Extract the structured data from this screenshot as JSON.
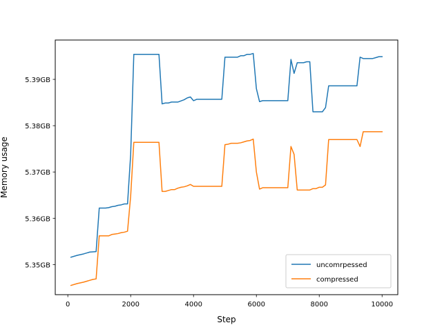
{
  "chart_data": {
    "type": "line",
    "title": "",
    "xlabel": "Step",
    "ylabel": "Memory usage",
    "xlim": [
      -400,
      10500
    ],
    "ylim": [
      5.3435,
      5.3985
    ],
    "xticks": [
      0,
      2000,
      4000,
      6000,
      8000,
      10000
    ],
    "xtick_labels": [
      "0",
      "2000",
      "4000",
      "6000",
      "8000",
      "10000"
    ],
    "yticks": [
      5.35,
      5.36,
      5.37,
      5.38,
      5.39
    ],
    "ytick_labels": [
      "5.35GB",
      "5.36GB",
      "5.37GB",
      "5.38GB",
      "5.39GB"
    ],
    "grid": false,
    "legend_position": "lower right",
    "series": [
      {
        "name": "uncomrpessed",
        "color": "#1f77b4",
        "points": [
          [
            100,
            5.3516
          ],
          [
            300,
            5.352
          ],
          [
            500,
            5.3523
          ],
          [
            700,
            5.3527
          ],
          [
            900,
            5.3528
          ],
          [
            1000,
            5.3622
          ],
          [
            1200,
            5.3622
          ],
          [
            1300,
            5.3623
          ],
          [
            1400,
            5.3625
          ],
          [
            1500,
            5.3626
          ],
          [
            1600,
            5.3628
          ],
          [
            1700,
            5.3629
          ],
          [
            1800,
            5.3631
          ],
          [
            1900,
            5.3631
          ],
          [
            2000,
            5.3738
          ],
          [
            2100,
            5.3954
          ],
          [
            2300,
            5.3954
          ],
          [
            2500,
            5.3954
          ],
          [
            2700,
            5.3954
          ],
          [
            2900,
            5.3954
          ],
          [
            3000,
            5.3847
          ],
          [
            3100,
            5.3849
          ],
          [
            3200,
            5.3849
          ],
          [
            3300,
            5.3851
          ],
          [
            3500,
            5.3851
          ],
          [
            3700,
            5.3856
          ],
          [
            3800,
            5.386
          ],
          [
            3900,
            5.3862
          ],
          [
            4000,
            5.3854
          ],
          [
            4100,
            5.3857
          ],
          [
            4300,
            5.3857
          ],
          [
            4600,
            5.3857
          ],
          [
            4900,
            5.3857
          ],
          [
            5000,
            5.3948
          ],
          [
            5200,
            5.3948
          ],
          [
            5400,
            5.3948
          ],
          [
            5500,
            5.3951
          ],
          [
            5600,
            5.3951
          ],
          [
            5700,
            5.3954
          ],
          [
            5800,
            5.3954
          ],
          [
            5900,
            5.3956
          ],
          [
            6000,
            5.388
          ],
          [
            6100,
            5.3852
          ],
          [
            6200,
            5.3854
          ],
          [
            6400,
            5.3854
          ],
          [
            6600,
            5.3854
          ],
          [
            6800,
            5.3854
          ],
          [
            7000,
            5.3854
          ],
          [
            7100,
            5.3943
          ],
          [
            7200,
            5.3913
          ],
          [
            7300,
            5.3936
          ],
          [
            7500,
            5.3936
          ],
          [
            7600,
            5.3938
          ],
          [
            7700,
            5.3938
          ],
          [
            7800,
            5.383
          ],
          [
            8000,
            5.383
          ],
          [
            8100,
            5.383
          ],
          [
            8200,
            5.3839
          ],
          [
            8300,
            5.3886
          ],
          [
            8500,
            5.3886
          ],
          [
            8800,
            5.3886
          ],
          [
            9000,
            5.3886
          ],
          [
            9200,
            5.3886
          ],
          [
            9300,
            5.3948
          ],
          [
            9400,
            5.3945
          ],
          [
            9600,
            5.3945
          ],
          [
            9700,
            5.3945
          ],
          [
            9800,
            5.3947
          ],
          [
            9900,
            5.3949
          ],
          [
            10000,
            5.3949
          ]
        ]
      },
      {
        "name": "compressed",
        "color": "#ff7f0e",
        "points": [
          [
            100,
            5.3455
          ],
          [
            300,
            5.3459
          ],
          [
            500,
            5.3462
          ],
          [
            700,
            5.3466
          ],
          [
            800,
            5.3468
          ],
          [
            900,
            5.3469
          ],
          [
            1000,
            5.3562
          ],
          [
            1200,
            5.3562
          ],
          [
            1300,
            5.3562
          ],
          [
            1400,
            5.3565
          ],
          [
            1500,
            5.3566
          ],
          [
            1600,
            5.3567
          ],
          [
            1700,
            5.3569
          ],
          [
            1800,
            5.357
          ],
          [
            1900,
            5.3572
          ],
          [
            2000,
            5.3648
          ],
          [
            2100,
            5.3764
          ],
          [
            2300,
            5.3764
          ],
          [
            2500,
            5.3764
          ],
          [
            2700,
            5.3764
          ],
          [
            2900,
            5.3764
          ],
          [
            3000,
            5.3658
          ],
          [
            3100,
            5.3658
          ],
          [
            3200,
            5.366
          ],
          [
            3300,
            5.3662
          ],
          [
            3400,
            5.3662
          ],
          [
            3500,
            5.3665
          ],
          [
            3600,
            5.3667
          ],
          [
            3700,
            5.3668
          ],
          [
            3800,
            5.367
          ],
          [
            3900,
            5.3673
          ],
          [
            4000,
            5.3669
          ],
          [
            4200,
            5.3669
          ],
          [
            4500,
            5.3669
          ],
          [
            4900,
            5.3669
          ],
          [
            5000,
            5.3759
          ],
          [
            5100,
            5.376
          ],
          [
            5200,
            5.3762
          ],
          [
            5400,
            5.3762
          ],
          [
            5500,
            5.3763
          ],
          [
            5600,
            5.3765
          ],
          [
            5700,
            5.3767
          ],
          [
            5800,
            5.3768
          ],
          [
            5900,
            5.3771
          ],
          [
            6000,
            5.37
          ],
          [
            6100,
            5.3663
          ],
          [
            6200,
            5.3666
          ],
          [
            6400,
            5.3666
          ],
          [
            6700,
            5.3666
          ],
          [
            7000,
            5.3666
          ],
          [
            7100,
            5.3755
          ],
          [
            7200,
            5.3738
          ],
          [
            7300,
            5.3661
          ],
          [
            7500,
            5.3661
          ],
          [
            7700,
            5.3661
          ],
          [
            7800,
            5.3664
          ],
          [
            7900,
            5.3664
          ],
          [
            8000,
            5.3667
          ],
          [
            8100,
            5.3667
          ],
          [
            8200,
            5.3672
          ],
          [
            8300,
            5.377
          ],
          [
            8500,
            5.377
          ],
          [
            8800,
            5.377
          ],
          [
            9100,
            5.377
          ],
          [
            9200,
            5.377
          ],
          [
            9300,
            5.3755
          ],
          [
            9400,
            5.3787
          ],
          [
            9600,
            5.3787
          ],
          [
            9800,
            5.3787
          ],
          [
            10000,
            5.3787
          ]
        ]
      }
    ]
  }
}
